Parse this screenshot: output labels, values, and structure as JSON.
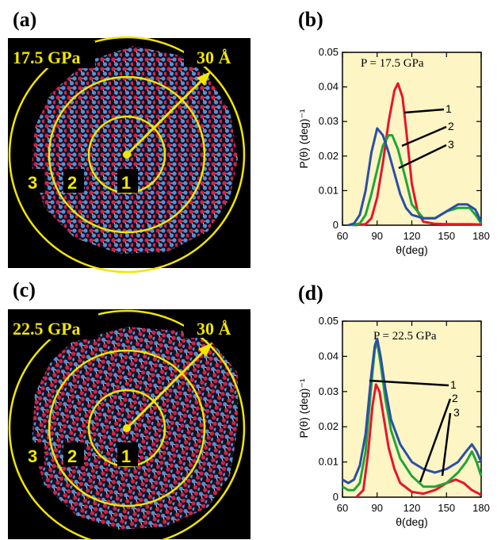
{
  "panels": {
    "a": {
      "label": "(a)",
      "pressure": "17.5 GPa",
      "scale": "30 Å",
      "zones": [
        "1",
        "2",
        "3"
      ]
    },
    "b": {
      "label": "(b)"
    },
    "c": {
      "label": "(c)",
      "pressure": "22.5 GPa",
      "scale": "30 Å",
      "zones": [
        "1",
        "2",
        "3"
      ]
    },
    "d": {
      "label": "(d)"
    }
  },
  "colors": {
    "plot_bg": "#fdf5c4",
    "sim_bg": "#000000",
    "circle": "#f2e600",
    "series_1": "#e8142a",
    "series_2": "#1fa53a",
    "series_3": "#2a4fa8",
    "atom_oxygen": "#d8204a",
    "atom_silicon": "#5a8fd6"
  },
  "chart_data": [
    {
      "panel": "b",
      "type": "line",
      "title": "",
      "annotation": "P = 17.5 GPa",
      "xlabel": "θ(deg)",
      "ylabel": "P(θ) (deg)⁻¹",
      "xlim": [
        60,
        180
      ],
      "ylim": [
        0,
        0.05
      ],
      "xticks": [
        60,
        90,
        120,
        150,
        180
      ],
      "yticks": [
        0,
        0.01,
        0.02,
        0.03,
        0.04,
        0.05
      ],
      "xtick_labels": [
        "60",
        "90",
        "120",
        "150",
        "180"
      ],
      "ytick_labels": [
        "0",
        "0.01",
        "0.02",
        "0.03",
        "0.04",
        "0.05"
      ],
      "series": [
        {
          "name": "1",
          "color": "#e8142a",
          "x": [
            70,
            80,
            85,
            90,
            95,
            100,
            105,
            108,
            112,
            115,
            120,
            125,
            130,
            140,
            150,
            160,
            170,
            180
          ],
          "y": [
            0,
            0.0003,
            0.002,
            0.008,
            0.018,
            0.03,
            0.039,
            0.041,
            0.037,
            0.028,
            0.012,
            0.004,
            0.001,
            0.0004,
            0.0003,
            0.0003,
            0.0003,
            0.0002
          ]
        },
        {
          "name": "2",
          "color": "#1fa53a",
          "x": [
            68,
            75,
            80,
            85,
            90,
            95,
            100,
            103,
            108,
            115,
            120,
            130,
            140,
            150,
            160,
            170,
            175,
            180
          ],
          "y": [
            0,
            0.0005,
            0.003,
            0.009,
            0.016,
            0.023,
            0.026,
            0.026,
            0.022,
            0.013,
            0.006,
            0.002,
            0.002,
            0.004,
            0.005,
            0.005,
            0.003,
            0.0005
          ]
        },
        {
          "name": "3",
          "color": "#2a4fa8",
          "x": [
            65,
            70,
            75,
            80,
            85,
            90,
            95,
            100,
            105,
            110,
            115,
            120,
            130,
            140,
            150,
            160,
            168,
            175,
            180
          ],
          "y": [
            0,
            0.0005,
            0.003,
            0.01,
            0.021,
            0.028,
            0.026,
            0.021,
            0.015,
            0.009,
            0.005,
            0.003,
            0.002,
            0.002,
            0.004,
            0.006,
            0.006,
            0.0045,
            0.001
          ]
        }
      ],
      "series_labels": [
        "1",
        "2",
        "3"
      ]
    },
    {
      "panel": "d",
      "type": "line",
      "title": "",
      "annotation": "P = 22.5 GPa",
      "xlabel": "θ(deg)",
      "ylabel": "P(θ) (deg)⁻¹",
      "xlim": [
        60,
        180
      ],
      "ylim": [
        0,
        0.05
      ],
      "xticks": [
        60,
        90,
        120,
        150,
        180
      ],
      "yticks": [
        0,
        0.01,
        0.02,
        0.03,
        0.04,
        0.05
      ],
      "xtick_labels": [
        "60",
        "90",
        "120",
        "150",
        "180"
      ],
      "ytick_labels": [
        "0",
        "0.01",
        "0.02",
        "0.03",
        "0.04",
        "0.05"
      ],
      "series": [
        {
          "name": "1",
          "color": "#e8142a",
          "x": [
            72,
            78,
            82,
            86,
            89,
            92,
            96,
            100,
            105,
            110,
            120,
            130,
            140,
            150,
            158,
            165,
            172,
            178,
            180
          ],
          "y": [
            0,
            0.002,
            0.012,
            0.026,
            0.032,
            0.03,
            0.022,
            0.014,
            0.008,
            0.004,
            0.0015,
            0.001,
            0.002,
            0.004,
            0.005,
            0.004,
            0.002,
            0.001,
            0.0005
          ]
        },
        {
          "name": "2",
          "color": "#1fa53a",
          "x": [
            60,
            65,
            70,
            75,
            80,
            85,
            88,
            90,
            93,
            97,
            102,
            110,
            120,
            130,
            140,
            150,
            160,
            167,
            172,
            176,
            180
          ],
          "y": [
            0.003,
            0.002,
            0.002,
            0.004,
            0.013,
            0.032,
            0.042,
            0.044,
            0.038,
            0.028,
            0.019,
            0.011,
            0.006,
            0.003,
            0.003,
            0.004,
            0.007,
            0.01,
            0.013,
            0.01,
            0.006
          ]
        },
        {
          "name": "3",
          "color": "#2a4fa8",
          "x": [
            60,
            65,
            70,
            75,
            80,
            85,
            88,
            90,
            93,
            97,
            102,
            110,
            120,
            130,
            140,
            150,
            160,
            167,
            172,
            176,
            180
          ],
          "y": [
            0.005,
            0.004,
            0.005,
            0.009,
            0.018,
            0.035,
            0.043,
            0.045,
            0.04,
            0.031,
            0.022,
            0.015,
            0.01,
            0.008,
            0.007,
            0.008,
            0.01,
            0.013,
            0.015,
            0.013,
            0.01
          ]
        }
      ],
      "series_labels": [
        "1",
        "2",
        "3"
      ]
    }
  ]
}
